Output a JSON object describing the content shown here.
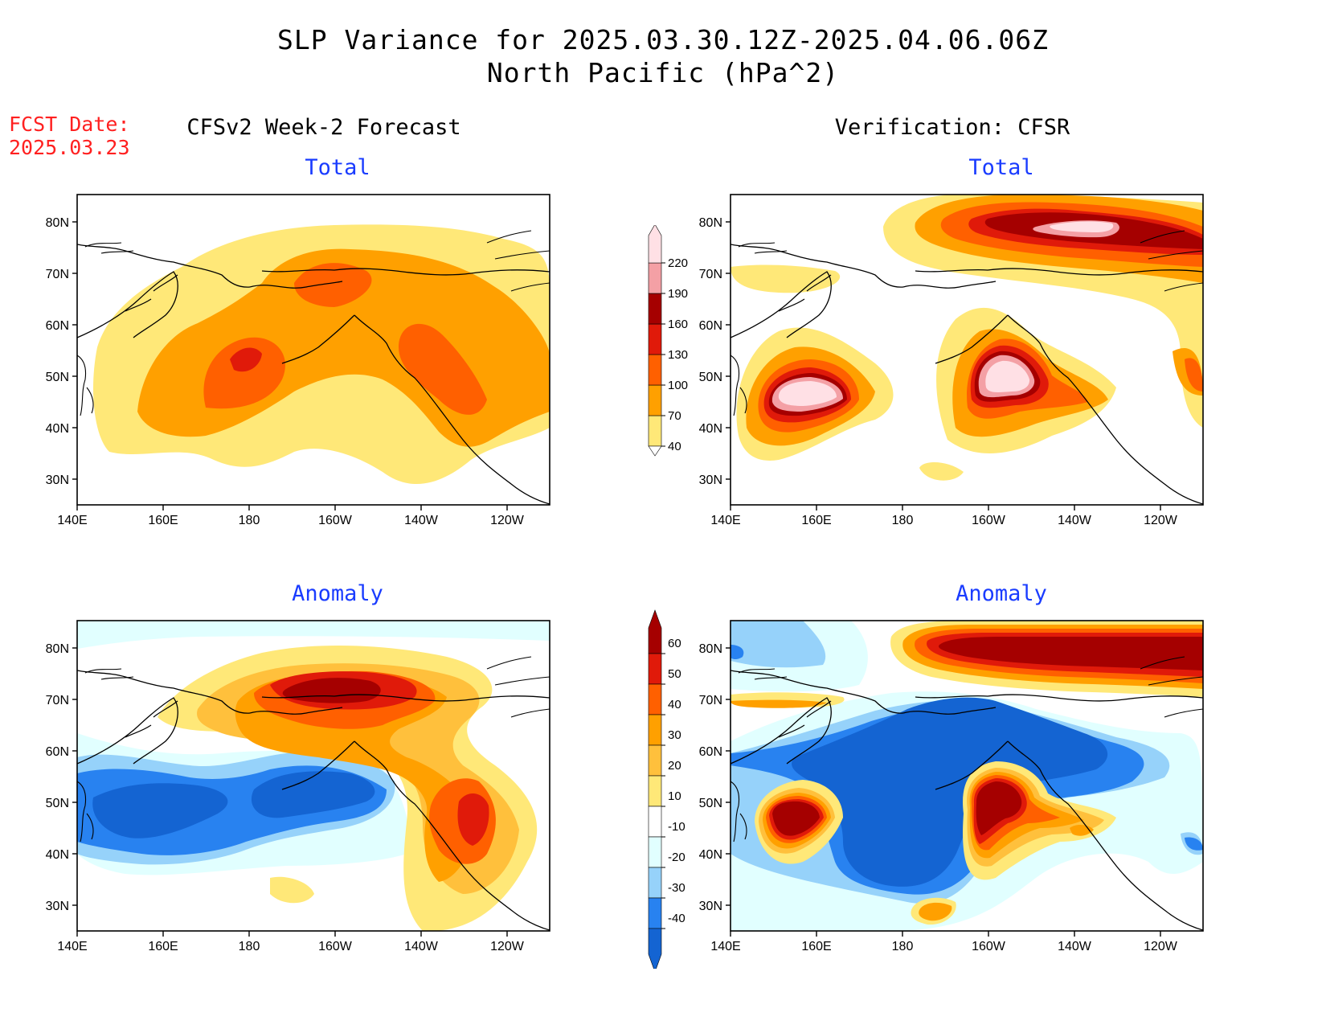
{
  "title": {
    "line1": "SLP Variance for 2025.03.30.12Z-2025.04.06.06Z",
    "line2": "North Pacific (hPa^2)"
  },
  "fcst": {
    "line1": "FCST Date:",
    "line2": "2025.03.23"
  },
  "columns": {
    "left": "CFSv2 Week-2 Forecast",
    "right": "Verification: CFSR"
  },
  "panels": {
    "top_left": {
      "subtitle": "Total"
    },
    "top_right": {
      "subtitle": "Total"
    },
    "bottom_left": {
      "subtitle": "Anomaly"
    },
    "bottom_right": {
      "subtitle": "Anomaly"
    }
  },
  "axes": {
    "lat_labels": [
      "80N",
      "70N",
      "60N",
      "50N",
      "40N",
      "30N"
    ],
    "lon_labels": [
      "140E",
      "160E",
      "180",
      "160W",
      "140W",
      "120W"
    ]
  },
  "colorbars": {
    "total": {
      "labels": [
        "40",
        "70",
        "100",
        "130",
        "160",
        "190",
        "220"
      ],
      "colors": [
        "#ffe878",
        "#ffa000",
        "#ff6000",
        "#e01a0a",
        "#a50000",
        "#f4a0a5",
        "#ffe0e5"
      ]
    },
    "anomaly": {
      "labels": [
        "-40",
        "-30",
        "-20",
        "-10",
        "10",
        "20",
        "30",
        "40",
        "50",
        "60"
      ],
      "colors": [
        "#1464d2",
        "#2882f0",
        "#96d2fa",
        "#e1ffff",
        "#ffffff",
        "#ffe878",
        "#ffc03c",
        "#ffa000",
        "#ff6000",
        "#e01a0a",
        "#a50000"
      ]
    }
  }
}
